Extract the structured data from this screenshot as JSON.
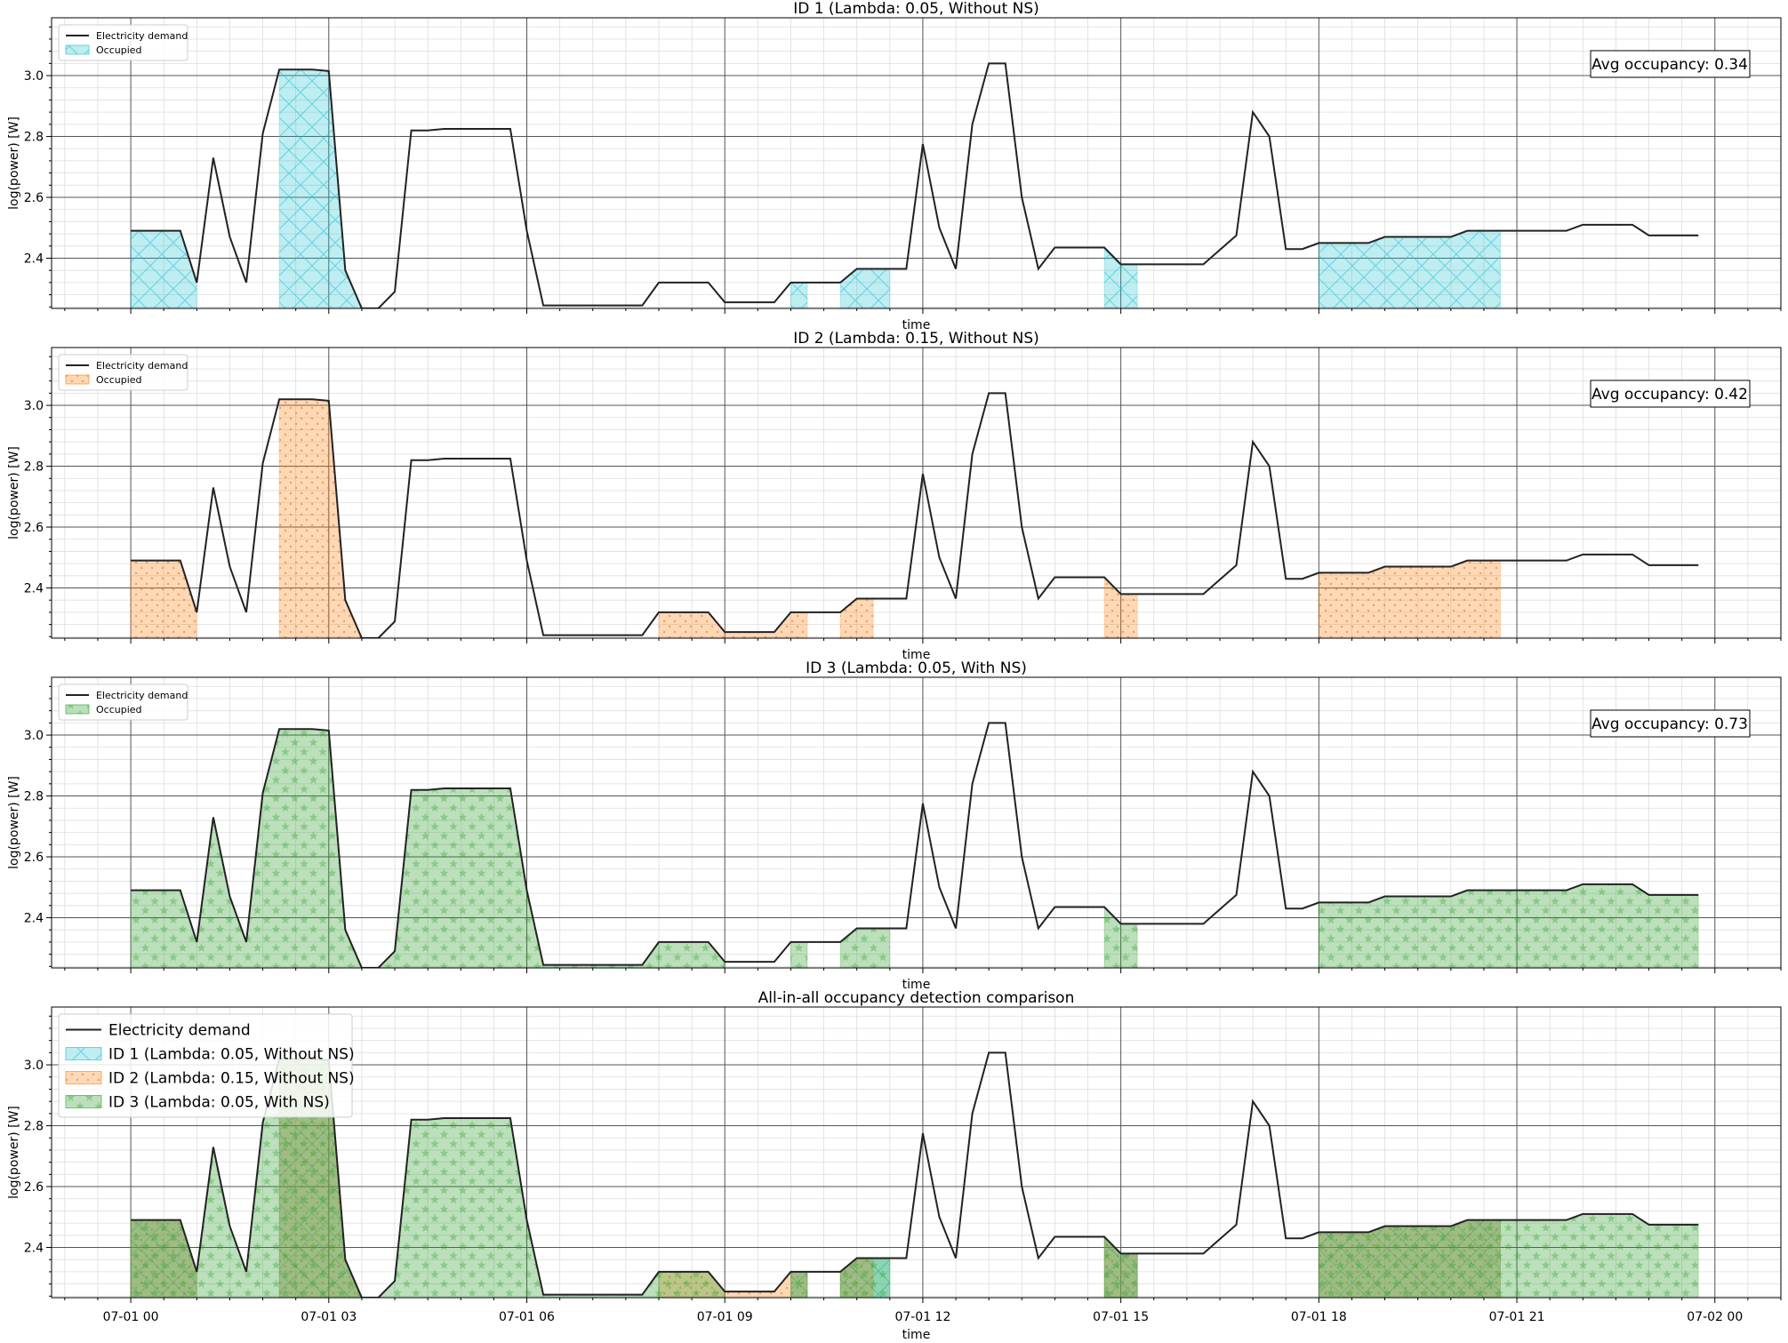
{
  "figure": {
    "x_tick_labels": [
      "07-01 00",
      "07-01 03",
      "07-01 06",
      "07-01 09",
      "07-01 12",
      "07-01 15",
      "07-01 18",
      "07-01 21",
      "07-02 00"
    ],
    "xlabel": "time",
    "ylabel": "log(power) [W]",
    "y_tick_labels": [
      "2.4",
      "2.6",
      "2.8",
      "3.0"
    ]
  },
  "chart_data": {
    "type": "line",
    "x_unit": "hours since 07-01 00",
    "xlim": [
      -1.2,
      25.0
    ],
    "ylim": [
      2.235,
      3.19
    ],
    "x_major_ticks": [
      0,
      3,
      6,
      9,
      12,
      15,
      18,
      21,
      24
    ],
    "y_major_ticks": [
      2.4,
      2.6,
      2.8,
      3.0
    ],
    "grid": true,
    "demand": {
      "name": "Electricity demand",
      "color": "#222222",
      "points": [
        [
          0.0,
          2.49
        ],
        [
          0.75,
          2.49
        ],
        [
          1.0,
          2.32
        ],
        [
          1.25,
          2.73
        ],
        [
          1.5,
          2.47
        ],
        [
          1.75,
          2.32
        ],
        [
          2.0,
          2.81
        ],
        [
          2.25,
          3.02
        ],
        [
          2.75,
          3.02
        ],
        [
          3.0,
          3.015
        ],
        [
          3.25,
          2.36
        ],
        [
          3.5,
          2.235
        ],
        [
          3.75,
          2.235
        ],
        [
          4.0,
          2.29
        ],
        [
          4.25,
          2.82
        ],
        [
          4.5,
          2.82
        ],
        [
          4.75,
          2.825
        ],
        [
          5.75,
          2.825
        ],
        [
          6.0,
          2.49
        ],
        [
          6.25,
          2.245
        ],
        [
          7.75,
          2.245
        ],
        [
          8.0,
          2.32
        ],
        [
          8.75,
          2.32
        ],
        [
          9.0,
          2.255
        ],
        [
          9.75,
          2.255
        ],
        [
          10.0,
          2.32
        ],
        [
          10.75,
          2.32
        ],
        [
          11.0,
          2.365
        ],
        [
          11.75,
          2.365
        ],
        [
          12.0,
          2.775
        ],
        [
          12.25,
          2.5
        ],
        [
          12.5,
          2.365
        ],
        [
          12.75,
          2.84
        ],
        [
          13.0,
          3.04
        ],
        [
          13.25,
          3.04
        ],
        [
          13.5,
          2.6
        ],
        [
          13.75,
          2.365
        ],
        [
          14.0,
          2.435
        ],
        [
          14.75,
          2.435
        ],
        [
          15.0,
          2.38
        ],
        [
          16.25,
          2.38
        ],
        [
          16.75,
          2.475
        ],
        [
          17.0,
          2.88
        ],
        [
          17.25,
          2.8
        ],
        [
          17.5,
          2.43
        ],
        [
          17.75,
          2.43
        ],
        [
          18.0,
          2.45
        ],
        [
          18.75,
          2.45
        ],
        [
          19.0,
          2.47
        ],
        [
          20.0,
          2.47
        ],
        [
          20.25,
          2.49
        ],
        [
          21.75,
          2.49
        ],
        [
          22.0,
          2.51
        ],
        [
          22.75,
          2.51
        ],
        [
          23.0,
          2.475
        ],
        [
          23.75,
          2.475
        ]
      ]
    },
    "panels": [
      {
        "title": "ID 1 (Lambda: 0.05, Without NS)",
        "legend": [
          "Electricity demand",
          "Occupied"
        ],
        "annotation": "Avg occupancy: 0.34",
        "show_x_tick_labels": false,
        "series": [
          {
            "name": "ID 1 (Lambda: 0.05, Without NS)",
            "color": "#17becf",
            "hatch": "cross",
            "occupied_intervals": [
              [
                0.0,
                1.0
              ],
              [
                2.25,
                3.5
              ],
              [
                10.0,
                10.25
              ],
              [
                10.75,
                11.5
              ],
              [
                14.75,
                15.25
              ],
              [
                18.0,
                20.75
              ]
            ]
          }
        ]
      },
      {
        "title": "ID 2 (Lambda: 0.15, Without NS)",
        "legend": [
          "Electricity demand",
          "Occupied"
        ],
        "annotation": "Avg occupancy: 0.42",
        "show_x_tick_labels": false,
        "series": [
          {
            "name": "ID 2 (Lambda: 0.15, Without NS)",
            "color": "#ff7f0e",
            "hatch": "dots",
            "occupied_intervals": [
              [
                0.0,
                1.0
              ],
              [
                2.25,
                3.5
              ],
              [
                8.0,
                10.25
              ],
              [
                10.75,
                11.25
              ],
              [
                14.75,
                15.25
              ],
              [
                18.0,
                20.75
              ]
            ]
          }
        ]
      },
      {
        "title": "ID 3 (Lambda: 0.05, With NS)",
        "legend": [
          "Electricity demand",
          "Occupied"
        ],
        "annotation": "Avg occupancy: 0.73",
        "show_x_tick_labels": false,
        "series": [
          {
            "name": "ID 3 (Lambda: 0.05, With NS)",
            "color": "#2ca02c",
            "hatch": "stars",
            "occupied_intervals": [
              [
                0.0,
                3.5
              ],
              [
                3.75,
                6.25
              ],
              [
                6.25,
                8.0
              ],
              [
                8.0,
                9.0
              ],
              [
                10.0,
                10.25
              ],
              [
                10.75,
                11.5
              ],
              [
                14.75,
                15.25
              ],
              [
                18.0,
                23.75
              ]
            ]
          }
        ]
      },
      {
        "title": "All-in-all occupancy detection comparison",
        "legend": [
          "Electricity demand",
          "ID 1 (Lambda: 0.05, Without NS)",
          "ID 2 (Lambda: 0.15, Without NS)",
          "ID 3 (Lambda: 0.05, With NS)"
        ],
        "annotation": "",
        "show_x_tick_labels": true,
        "series": [
          {
            "name": "ID 1 (Lambda: 0.05, Without NS)",
            "color": "#17becf",
            "hatch": "cross",
            "occupied_intervals": [
              [
                0.0,
                1.0
              ],
              [
                2.25,
                3.5
              ],
              [
                10.0,
                10.25
              ],
              [
                10.75,
                11.5
              ],
              [
                14.75,
                15.25
              ],
              [
                18.0,
                20.75
              ]
            ]
          },
          {
            "name": "ID 2 (Lambda: 0.15, Without NS)",
            "color": "#ff7f0e",
            "hatch": "dots",
            "occupied_intervals": [
              [
                0.0,
                1.0
              ],
              [
                2.25,
                3.5
              ],
              [
                8.0,
                10.25
              ],
              [
                10.75,
                11.25
              ],
              [
                14.75,
                15.25
              ],
              [
                18.0,
                20.75
              ]
            ]
          },
          {
            "name": "ID 3 (Lambda: 0.05, With NS)",
            "color": "#2ca02c",
            "hatch": "stars",
            "occupied_intervals": [
              [
                0.0,
                3.5
              ],
              [
                3.75,
                6.25
              ],
              [
                6.25,
                8.0
              ],
              [
                8.0,
                9.0
              ],
              [
                10.0,
                10.25
              ],
              [
                10.75,
                11.5
              ],
              [
                14.75,
                15.25
              ],
              [
                18.0,
                23.75
              ]
            ]
          }
        ]
      }
    ]
  }
}
